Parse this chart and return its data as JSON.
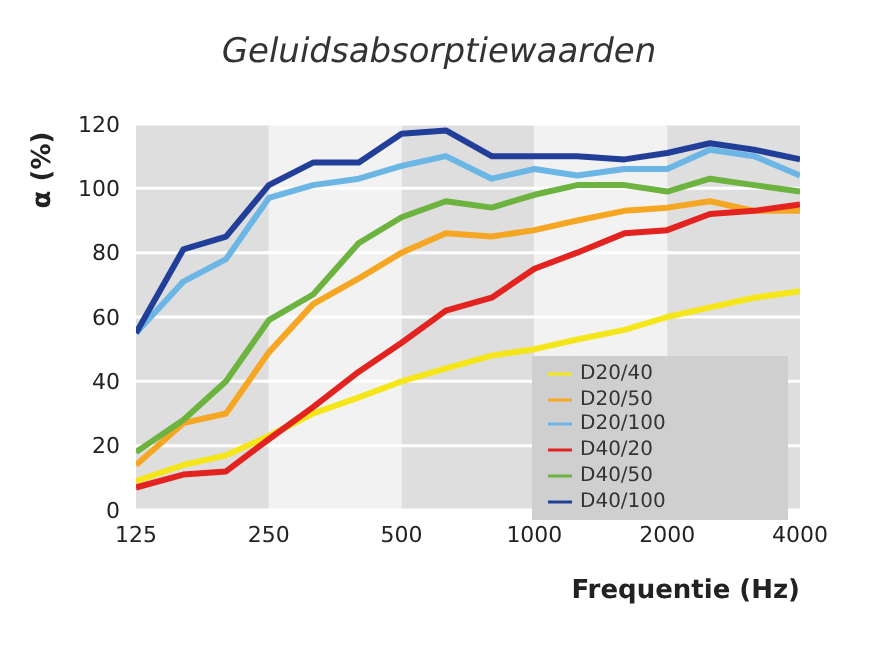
{
  "chart_data": {
    "type": "line",
    "title": "Geluidsabsorptiewaarden",
    "xlabel": "Frequentie (Hz)",
    "ylabel": "α (%)",
    "x": [
      125,
      160,
      200,
      250,
      315,
      400,
      500,
      630,
      800,
      1000,
      1250,
      1600,
      2000,
      2500,
      3150,
      4000
    ],
    "series": [
      {
        "name": "D20/40",
        "color": "#f5e619",
        "values": [
          9,
          14,
          17,
          23,
          30,
          35,
          40,
          44,
          48,
          50,
          53,
          56,
          60,
          63,
          66,
          68
        ]
      },
      {
        "name": "D20/50",
        "color": "#f5a623",
        "values": [
          14,
          27,
          30,
          49,
          64,
          72,
          80,
          86,
          85,
          87,
          90,
          93,
          94,
          96,
          93,
          93
        ]
      },
      {
        "name": "D20/100",
        "color": "#6cb6e6",
        "values": [
          55,
          71,
          78,
          97,
          101,
          103,
          107,
          110,
          103,
          106,
          104,
          106,
          106,
          112,
          110,
          104
        ]
      },
      {
        "name": "D40/20",
        "color": "#e3231f",
        "values": [
          7,
          11,
          12,
          22,
          32,
          43,
          52,
          62,
          66,
          75,
          80,
          86,
          87,
          92,
          93,
          95
        ]
      },
      {
        "name": "D40/50",
        "color": "#6db33f",
        "values": [
          18,
          28,
          40,
          59,
          67,
          83,
          91,
          96,
          94,
          98,
          101,
          101,
          99,
          103,
          101,
          99
        ]
      },
      {
        "name": "D40/100",
        "color": "#213f99",
        "values": [
          55,
          81,
          85,
          101,
          108,
          108,
          117,
          118,
          110,
          110,
          110,
          109,
          111,
          114,
          112,
          109
        ]
      }
    ],
    "log": "x",
    "xlim": [
      125,
      4000
    ],
    "xticks": [
      125,
      250,
      500,
      1000,
      2000,
      4000
    ],
    "ylim": [
      0,
      120
    ],
    "yticks": [
      0,
      20,
      40,
      60,
      80,
      100,
      120
    ],
    "bands": [
      {
        "axis": "x",
        "from": 125,
        "to": 250,
        "color": "#dedede"
      },
      {
        "axis": "x",
        "from": 250,
        "to": 500,
        "color": "#f2f2f2"
      },
      {
        "axis": "x",
        "from": 500,
        "to": 1000,
        "color": "#dedede"
      },
      {
        "axis": "x",
        "from": 1000,
        "to": 2000,
        "color": "#f2f2f2"
      },
      {
        "axis": "x",
        "from": 2000,
        "to": 4000,
        "color": "#dedede"
      }
    ],
    "grid": "y",
    "legend": "bottom right",
    "marker": "none",
    "line_style": "solid"
  }
}
